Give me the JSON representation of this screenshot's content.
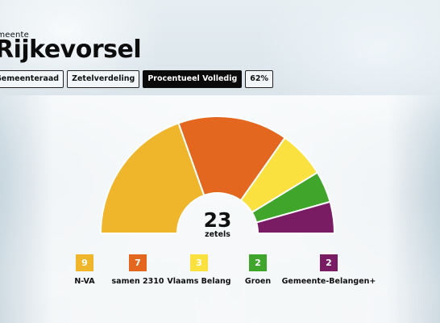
{
  "header": {
    "kicker": "emeente",
    "title": "Rijkevorsel"
  },
  "tabs": [
    {
      "label": "Gemeenteraad",
      "active": false
    },
    {
      "label": "Zetelverdeling",
      "active": false
    },
    {
      "label": "Procentueel Volledig",
      "active": true
    },
    {
      "label": "62%",
      "active": false
    }
  ],
  "seats": {
    "total": "23",
    "unit": "zetels"
  },
  "parties": [
    {
      "name": "N-VA",
      "seats": 9,
      "color": "#efb52b"
    },
    {
      "name": "samen 2310",
      "seats": 7,
      "color": "#e3671e"
    },
    {
      "name": "Vlaams Belang",
      "seats": 3,
      "color": "#fbe13f"
    },
    {
      "name": "Groen",
      "seats": 2,
      "color": "#3fa62b"
    },
    {
      "name": "Gemeente-Belangen+",
      "seats": 2,
      "color": "#7a1c64"
    }
  ]
}
